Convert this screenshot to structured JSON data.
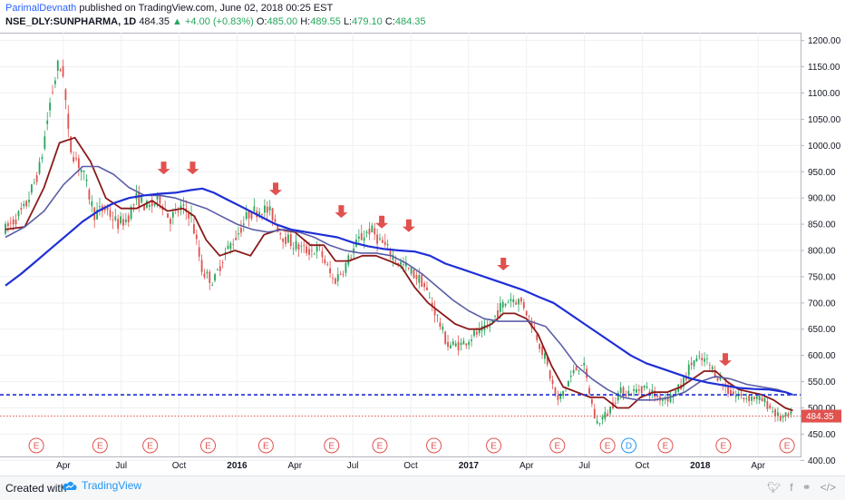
{
  "header": {
    "author": "ParimalDevnath",
    "published": " published on TradingView.com, June 02, 2018 00:25 EST",
    "symbol": "NSE_DLY:SUNPHARMA, 1D",
    "last": "484.35",
    "change": "▲ +4.00 (+0.83%)",
    "o_label": "O:",
    "o": "485.00",
    "h_label": "H:",
    "h": "489.55",
    "l_label": "L:",
    "l": "479.10",
    "c_label": "C:",
    "c": "484.35"
  },
  "footer": {
    "created": "Created with",
    "brand": "TradingView",
    "share_icons": [
      "tweet-icon",
      "facebook-icon",
      "link-icon",
      "embed-icon"
    ]
  },
  "colors": {
    "candle_up": "#26a65b",
    "candle_down": "#e0524f",
    "ma_fast": "#8b1a1a",
    "ma_mid": "#5b5ea6",
    "ma_slow": "#1f2fd6",
    "support_line": "#1f2fd6",
    "price_line": "#e0524f",
    "arrow": "#e0524f",
    "earnings": "#e0524f",
    "dividend": "#2196f3"
  },
  "chart_data": {
    "type": "line",
    "title": "",
    "xlabel": "",
    "ylabel": "",
    "ylim": [
      385,
      1215
    ],
    "y_ticks": [
      "1200.00",
      "1150.00",
      "1100.00",
      "1050.00",
      "1000.00",
      "950.00",
      "900.00",
      "850.00",
      "800.00",
      "750.00",
      "700.00",
      "650.00",
      "600.00",
      "550.00",
      "500.00",
      "450.00",
      "400.00"
    ],
    "y_tick_values": [
      1200,
      1150,
      1100,
      1050,
      1000,
      950,
      900,
      850,
      800,
      750,
      700,
      650,
      600,
      550,
      500,
      450,
      400
    ],
    "x_labels": [
      {
        "label": "Apr",
        "month": 3,
        "year": false
      },
      {
        "label": "Jul",
        "month": 6,
        "year": false
      },
      {
        "label": "Oct",
        "month": 9,
        "year": false
      },
      {
        "label": "2016",
        "month": 12,
        "year": true
      },
      {
        "label": "Apr",
        "month": 15,
        "year": false
      },
      {
        "label": "Jul",
        "month": 18,
        "year": false
      },
      {
        "label": "Oct",
        "month": 21,
        "year": false
      },
      {
        "label": "2017",
        "month": 24,
        "year": true
      },
      {
        "label": "Apr",
        "month": 27,
        "year": false
      },
      {
        "label": "Jul",
        "month": 30,
        "year": false
      },
      {
        "label": "Oct",
        "month": 33,
        "year": false
      },
      {
        "label": "2018",
        "month": 36,
        "year": true
      },
      {
        "label": "Apr",
        "month": 39,
        "year": false
      }
    ],
    "x_range_months": [
      0,
      41.2
    ],
    "price_path": [
      [
        0,
        840
      ],
      [
        1.0,
        880
      ],
      [
        1.8,
        960
      ],
      [
        2.3,
        1080
      ],
      [
        2.7,
        1150
      ],
      [
        3.0,
        1140
      ],
      [
        3.3,
        1000
      ],
      [
        4.0,
        950
      ],
      [
        4.6,
        870
      ],
      [
        5.2,
        880
      ],
      [
        5.8,
        850
      ],
      [
        6.3,
        860
      ],
      [
        6.8,
        900
      ],
      [
        7.4,
        880
      ],
      [
        8.0,
        900
      ],
      [
        8.5,
        860
      ],
      [
        9.1,
        880
      ],
      [
        9.6,
        870
      ],
      [
        10.2,
        760
      ],
      [
        10.8,
        740
      ],
      [
        11.3,
        790
      ],
      [
        12.0,
        830
      ],
      [
        12.6,
        870
      ],
      [
        13.3,
        880
      ],
      [
        13.8,
        870
      ],
      [
        14.3,
        830
      ],
      [
        15.0,
        810
      ],
      [
        15.6,
        800
      ],
      [
        16.3,
        800
      ],
      [
        17.0,
        740
      ],
      [
        17.6,
        770
      ],
      [
        18.3,
        820
      ],
      [
        18.9,
        840
      ],
      [
        19.6,
        810
      ],
      [
        20.3,
        780
      ],
      [
        21.0,
        760
      ],
      [
        21.6,
        740
      ],
      [
        22.3,
        680
      ],
      [
        22.9,
        620
      ],
      [
        23.6,
        620
      ],
      [
        24.3,
        640
      ],
      [
        25.0,
        650
      ],
      [
        25.6,
        690
      ],
      [
        26.2,
        710
      ],
      [
        26.8,
        700
      ],
      [
        27.4,
        650
      ],
      [
        28.0,
        590
      ],
      [
        28.6,
        510
      ],
      [
        29.3,
        560
      ],
      [
        29.9,
        590
      ],
      [
        30.6,
        470
      ],
      [
        31.2,
        490
      ],
      [
        31.8,
        530
      ],
      [
        32.5,
        530
      ],
      [
        33.1,
        540
      ],
      [
        33.8,
        520
      ],
      [
        34.4,
        520
      ],
      [
        35.0,
        540
      ],
      [
        35.6,
        590
      ],
      [
        36.3,
        590
      ],
      [
        36.9,
        560
      ],
      [
        37.5,
        530
      ],
      [
        38.1,
        520
      ],
      [
        38.8,
        520
      ],
      [
        39.4,
        510
      ],
      [
        40.1,
        480
      ],
      [
        40.7,
        484
      ]
    ],
    "series": [
      {
        "key": "ma_fast",
        "points": [
          [
            0,
            840
          ],
          [
            1.0,
            845
          ],
          [
            2.0,
            920
          ],
          [
            2.8,
            1005
          ],
          [
            3.6,
            1015
          ],
          [
            4.4,
            970
          ],
          [
            5.2,
            900
          ],
          [
            6.0,
            880
          ],
          [
            6.8,
            880
          ],
          [
            7.6,
            895
          ],
          [
            8.4,
            875
          ],
          [
            9.2,
            880
          ],
          [
            9.8,
            865
          ],
          [
            10.4,
            820
          ],
          [
            11.1,
            790
          ],
          [
            11.9,
            800
          ],
          [
            12.7,
            790
          ],
          [
            13.4,
            830
          ],
          [
            14.2,
            840
          ],
          [
            15.0,
            835
          ],
          [
            15.8,
            810
          ],
          [
            16.5,
            810
          ],
          [
            17.1,
            780
          ],
          [
            17.8,
            780
          ],
          [
            18.5,
            790
          ],
          [
            19.2,
            790
          ],
          [
            19.9,
            780
          ],
          [
            20.5,
            770
          ],
          [
            21.2,
            730
          ],
          [
            21.9,
            700
          ],
          [
            22.6,
            680
          ],
          [
            23.3,
            660
          ],
          [
            24.0,
            650
          ],
          [
            24.6,
            650
          ],
          [
            25.2,
            660
          ],
          [
            25.8,
            680
          ],
          [
            26.4,
            680
          ],
          [
            27.0,
            670
          ],
          [
            27.6,
            640
          ],
          [
            28.3,
            580
          ],
          [
            28.9,
            540
          ],
          [
            29.6,
            530
          ],
          [
            30.3,
            520
          ],
          [
            31.0,
            520
          ],
          [
            31.7,
            500
          ],
          [
            32.3,
            500
          ],
          [
            32.9,
            520
          ],
          [
            33.6,
            530
          ],
          [
            34.3,
            530
          ],
          [
            35.0,
            540
          ],
          [
            35.6,
            555
          ],
          [
            36.2,
            570
          ],
          [
            36.8,
            570
          ],
          [
            37.4,
            550
          ],
          [
            38.0,
            535
          ],
          [
            38.6,
            530
          ],
          [
            39.2,
            525
          ],
          [
            39.8,
            515
          ],
          [
            40.4,
            500
          ],
          [
            40.8,
            495
          ]
        ]
      },
      {
        "key": "ma_mid",
        "points": [
          [
            0,
            825
          ],
          [
            1.0,
            845
          ],
          [
            2.0,
            875
          ],
          [
            3.0,
            925
          ],
          [
            4.0,
            960
          ],
          [
            4.8,
            960
          ],
          [
            5.6,
            945
          ],
          [
            6.4,
            920
          ],
          [
            7.2,
            905
          ],
          [
            8.0,
            905
          ],
          [
            8.8,
            900
          ],
          [
            9.6,
            890
          ],
          [
            10.4,
            880
          ],
          [
            11.2,
            865
          ],
          [
            12.0,
            850
          ],
          [
            12.8,
            840
          ],
          [
            13.6,
            835
          ],
          [
            14.4,
            840
          ],
          [
            15.2,
            835
          ],
          [
            16.0,
            825
          ],
          [
            16.8,
            810
          ],
          [
            17.6,
            800
          ],
          [
            18.4,
            795
          ],
          [
            19.2,
            795
          ],
          [
            20.0,
            790
          ],
          [
            20.8,
            775
          ],
          [
            21.6,
            755
          ],
          [
            22.4,
            730
          ],
          [
            23.2,
            705
          ],
          [
            24.0,
            685
          ],
          [
            24.8,
            670
          ],
          [
            25.6,
            665
          ],
          [
            26.4,
            665
          ],
          [
            27.2,
            665
          ],
          [
            28.0,
            655
          ],
          [
            28.8,
            620
          ],
          [
            29.6,
            580
          ],
          [
            30.4,
            555
          ],
          [
            31.2,
            535
          ],
          [
            32.0,
            520
          ],
          [
            32.8,
            515
          ],
          [
            33.6,
            515
          ],
          [
            34.4,
            520
          ],
          [
            35.2,
            530
          ],
          [
            36.0,
            550
          ],
          [
            36.8,
            560
          ],
          [
            37.6,
            555
          ],
          [
            38.4,
            545
          ],
          [
            39.2,
            540
          ],
          [
            40.0,
            535
          ],
          [
            40.8,
            525
          ]
        ]
      },
      {
        "key": "ma_slow",
        "points": [
          [
            0,
            733
          ],
          [
            0.8,
            755
          ],
          [
            1.6,
            780
          ],
          [
            2.4,
            805
          ],
          [
            3.2,
            830
          ],
          [
            4.0,
            855
          ],
          [
            4.8,
            875
          ],
          [
            5.6,
            890
          ],
          [
            6.4,
            900
          ],
          [
            7.2,
            905
          ],
          [
            8.0,
            908
          ],
          [
            8.8,
            910
          ],
          [
            9.6,
            915
          ],
          [
            10.2,
            918
          ],
          [
            10.8,
            910
          ],
          [
            11.6,
            895
          ],
          [
            12.4,
            880
          ],
          [
            13.2,
            865
          ],
          [
            14.0,
            850
          ],
          [
            14.8,
            840
          ],
          [
            15.6,
            835
          ],
          [
            16.4,
            830
          ],
          [
            17.2,
            825
          ],
          [
            18.0,
            815
          ],
          [
            18.8,
            808
          ],
          [
            19.6,
            803
          ],
          [
            20.4,
            800
          ],
          [
            21.2,
            798
          ],
          [
            22.0,
            790
          ],
          [
            22.8,
            775
          ],
          [
            23.6,
            765
          ],
          [
            24.4,
            755
          ],
          [
            25.2,
            745
          ],
          [
            26.0,
            735
          ],
          [
            26.8,
            725
          ],
          [
            27.6,
            712
          ],
          [
            28.4,
            700
          ],
          [
            29.2,
            680
          ],
          [
            30.0,
            660
          ],
          [
            30.8,
            640
          ],
          [
            31.6,
            620
          ],
          [
            32.4,
            600
          ],
          [
            33.2,
            585
          ],
          [
            34.0,
            575
          ],
          [
            34.8,
            565
          ],
          [
            35.6,
            555
          ],
          [
            36.4,
            548
          ],
          [
            37.2,
            543
          ],
          [
            38.0,
            538
          ],
          [
            38.8,
            536
          ],
          [
            39.6,
            535
          ],
          [
            40.4,
            530
          ],
          [
            40.8,
            525
          ]
        ]
      }
    ],
    "horizontal_lines": [
      {
        "value": 525,
        "style": "dashed",
        "color_key": "support_line"
      },
      {
        "value": 484.35,
        "style": "dotted",
        "color_key": "price_line"
      }
    ],
    "last_price_label": "484.35",
    "arrows": [
      {
        "month": 8.2,
        "value": 945
      },
      {
        "month": 9.7,
        "value": 945
      },
      {
        "month": 14.0,
        "value": 905
      },
      {
        "month": 17.4,
        "value": 862
      },
      {
        "month": 19.5,
        "value": 842
      },
      {
        "month": 20.9,
        "value": 835
      },
      {
        "month": 25.8,
        "value": 762
      },
      {
        "month": 37.3,
        "value": 580
      }
    ],
    "events": [
      {
        "label": "E",
        "month": 1.6,
        "kind": "earnings"
      },
      {
        "label": "E",
        "month": 4.9,
        "kind": "earnings"
      },
      {
        "label": "E",
        "month": 7.5,
        "kind": "earnings"
      },
      {
        "label": "E",
        "month": 10.5,
        "kind": "earnings"
      },
      {
        "label": "E",
        "month": 13.5,
        "kind": "earnings"
      },
      {
        "label": "E",
        "month": 16.9,
        "kind": "earnings"
      },
      {
        "label": "E",
        "month": 19.4,
        "kind": "earnings"
      },
      {
        "label": "E",
        "month": 22.2,
        "kind": "earnings"
      },
      {
        "label": "E",
        "month": 25.3,
        "kind": "earnings"
      },
      {
        "label": "E",
        "month": 28.6,
        "kind": "earnings"
      },
      {
        "label": "E",
        "month": 31.2,
        "kind": "earnings"
      },
      {
        "label": "D",
        "month": 32.3,
        "kind": "dividend"
      },
      {
        "label": "E",
        "month": 34.2,
        "kind": "earnings"
      },
      {
        "label": "E",
        "month": 37.2,
        "kind": "earnings"
      },
      {
        "label": "E",
        "month": 40.5,
        "kind": "earnings"
      }
    ]
  }
}
